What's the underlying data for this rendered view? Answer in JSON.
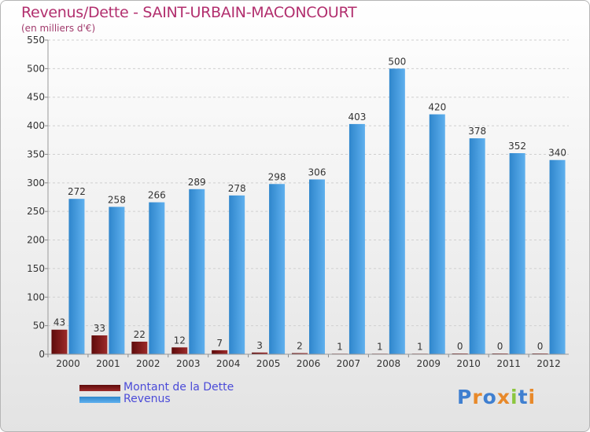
{
  "chart_data": {
    "type": "bar",
    "title": "Revenus/Dette - SAINT-URBAIN-MACONCOURT",
    "subtitle": "(en milliers d'€)",
    "categories": [
      "2000",
      "2001",
      "2002",
      "2003",
      "2004",
      "2005",
      "2006",
      "2007",
      "2008",
      "2009",
      "2010",
      "2011",
      "2012"
    ],
    "series": [
      {
        "name": "Montant de la Dette",
        "color": "#7a1010",
        "values": [
          43,
          33,
          22,
          12,
          7,
          3,
          2,
          1,
          1,
          1,
          0,
          0,
          0
        ]
      },
      {
        "name": "Revenus",
        "color": "#3f99de",
        "values": [
          272,
          258,
          266,
          289,
          278,
          298,
          306,
          403,
          500,
          420,
          378,
          352,
          340
        ]
      }
    ],
    "ylim": [
      0,
      550
    ],
    "yticks": [
      0,
      50,
      100,
      150,
      200,
      250,
      300,
      350,
      400,
      450,
      500,
      550
    ],
    "grid": true,
    "legend": "bottom-left"
  },
  "logo": {
    "text": "Proxiti",
    "letters": [
      {
        "ch": "P",
        "color": "#3f7fd0"
      },
      {
        "ch": "r",
        "color": "#e8892a"
      },
      {
        "ch": "o",
        "color": "#3f7fd0"
      },
      {
        "ch": "x",
        "color": "#e8892a"
      },
      {
        "ch": "i",
        "color": "#8cc63f"
      },
      {
        "ch": "t",
        "color": "#3f7fd0"
      },
      {
        "ch": "i",
        "color": "#e8892a"
      }
    ]
  }
}
